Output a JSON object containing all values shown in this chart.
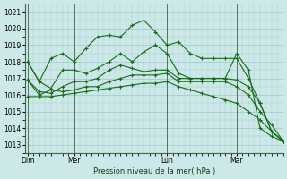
{
  "background_color": "#cce8e8",
  "grid_color": "#aacccc",
  "line_color": "#1a6b1a",
  "title": "Pression niveau de la mer( hPa )",
  "ylim": [
    1012.5,
    1021.5
  ],
  "yticks": [
    1013,
    1014,
    1015,
    1016,
    1017,
    1018,
    1019,
    1020,
    1021
  ],
  "xtick_labels": [
    "Dim",
    "Mer",
    "Lun",
    "Mar"
  ],
  "xtick_positions": [
    0,
    16,
    48,
    72
  ],
  "vlines": [
    0,
    16,
    48,
    72
  ],
  "xlim": [
    -1,
    88
  ],
  "series": [
    {
      "x": [
        0,
        4,
        8,
        12,
        16,
        20,
        24,
        28,
        32,
        36,
        40,
        44,
        48,
        52,
        56,
        60,
        64,
        68,
        72,
        76,
        80,
        84,
        88
      ],
      "y": [
        1018.0,
        1016.8,
        1018.2,
        1018.5,
        1018.0,
        1018.8,
        1019.5,
        1019.6,
        1019.5,
        1020.2,
        1020.5,
        1019.8,
        1019.0,
        1019.2,
        1018.5,
        1018.2,
        1018.2,
        1018.2,
        1018.2,
        1017.0,
        1015.5,
        1013.8,
        1013.2
      ]
    },
    {
      "x": [
        0,
        4,
        8,
        12,
        16,
        20,
        24,
        28,
        32,
        36,
        40,
        44,
        48,
        52,
        56,
        60,
        64,
        68,
        72,
        76,
        80,
        84,
        88
      ],
      "y": [
        1018.0,
        1016.8,
        1016.4,
        1017.5,
        1017.5,
        1017.3,
        1017.6,
        1018.0,
        1018.5,
        1018.0,
        1018.6,
        1019.0,
        1018.5,
        1017.3,
        1017.0,
        1017.0,
        1017.0,
        1017.0,
        1018.5,
        1017.5,
        1014.0,
        1013.5,
        1013.2
      ]
    },
    {
      "x": [
        0,
        4,
        8,
        12,
        16,
        20,
        24,
        28,
        32,
        36,
        40,
        44,
        48,
        52,
        56,
        60,
        64,
        68,
        72,
        76,
        80,
        84,
        88
      ],
      "y": [
        1016.9,
        1016.2,
        1016.1,
        1016.5,
        1016.8,
        1016.8,
        1017.0,
        1017.5,
        1017.8,
        1017.6,
        1017.4,
        1017.5,
        1017.5,
        1017.0,
        1017.0,
        1017.0,
        1017.0,
        1017.0,
        1016.9,
        1016.5,
        1015.5,
        1013.8,
        1013.2
      ]
    },
    {
      "x": [
        0,
        4,
        8,
        12,
        16,
        20,
        24,
        28,
        32,
        36,
        40,
        44,
        48,
        52,
        56,
        60,
        64,
        68,
        72,
        76,
        80,
        84,
        88
      ],
      "y": [
        1016.9,
        1016.0,
        1016.3,
        1016.2,
        1016.3,
        1016.5,
        1016.5,
        1016.8,
        1017.0,
        1017.2,
        1017.2,
        1017.2,
        1017.3,
        1016.8,
        1016.8,
        1016.8,
        1016.8,
        1016.8,
        1016.5,
        1016.0,
        1015.0,
        1014.2,
        1013.2
      ]
    },
    {
      "x": [
        0,
        4,
        8,
        12,
        16,
        20,
        24,
        28,
        32,
        36,
        40,
        44,
        48,
        52,
        56,
        60,
        64,
        68,
        72,
        76,
        80,
        84,
        88
      ],
      "y": [
        1015.9,
        1015.9,
        1015.9,
        1016.0,
        1016.1,
        1016.2,
        1016.3,
        1016.4,
        1016.5,
        1016.6,
        1016.7,
        1016.7,
        1016.8,
        1016.5,
        1016.3,
        1016.1,
        1015.9,
        1015.7,
        1015.5,
        1015.0,
        1014.5,
        1013.8,
        1013.2
      ]
    }
  ]
}
